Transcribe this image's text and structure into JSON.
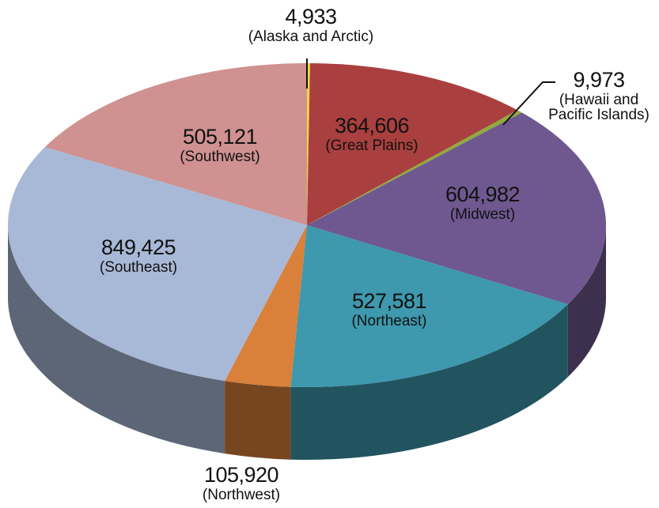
{
  "chart_data": {
    "type": "pie3d",
    "categories": [
      "(Alaska and Arctic)",
      "(Great Plains)",
      "(Hawaii and Pacific Islands)",
      "(Midwest)",
      "(Northeast)",
      "(Northwest)",
      "(Southeast)",
      "(Southwest)"
    ],
    "values": [
      4933,
      364606,
      9973,
      604982,
      527581,
      105920,
      849425,
      505121
    ],
    "value_labels": [
      "4,933",
      "364,606",
      "9,973",
      "604,982",
      "527,581",
      "105,920",
      "849,425",
      "505,121"
    ],
    "colors": [
      "#f5d83a",
      "#a9403f",
      "#8fab3c",
      "#6f5890",
      "#3e98ae",
      "#d9803a",
      "#a8b9d7",
      "#d09191"
    ]
  }
}
